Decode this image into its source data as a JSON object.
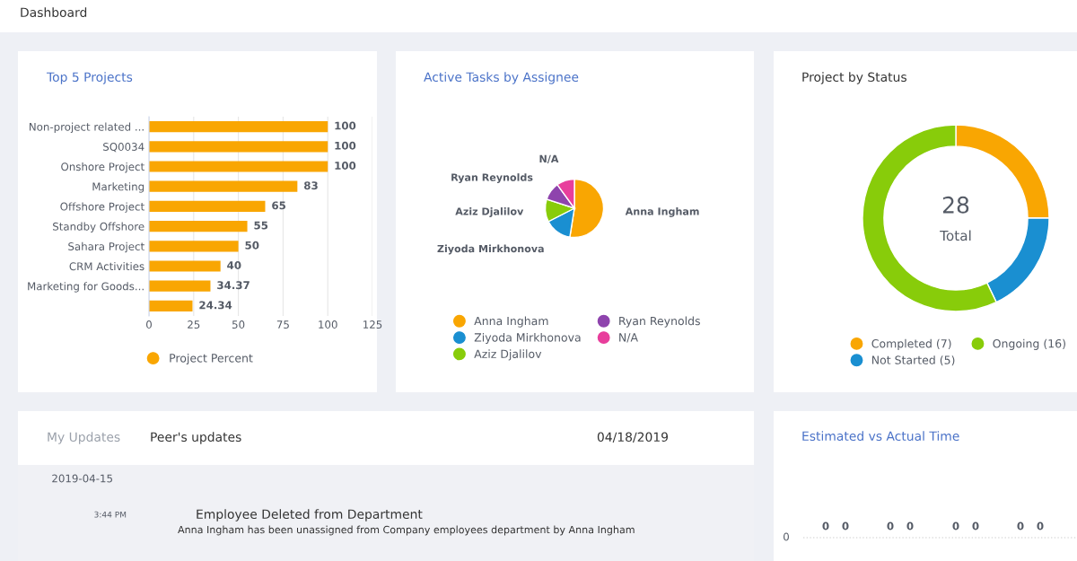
{
  "chart_data": [
    {
      "type": "other",
      "title": "Dashboard"
    },
    {
      "type": "bar",
      "title": "Top 5 Projects",
      "orientation": "horizontal",
      "categories": [
        "Non-project related ...",
        "SQ0034",
        "Onshore Project",
        "Marketing",
        "Offshore Project",
        "Standby Offshore",
        "Sahara Project",
        "CRM Activities",
        "Marketing for Goods...",
        null
      ],
      "series": [
        {
          "name": "Project Percent",
          "color": "#f9a602",
          "values": [
            100,
            100,
            100,
            83,
            65,
            55,
            50,
            40,
            34.37,
            24.34
          ]
        }
      ],
      "xlim": [
        0,
        125
      ],
      "xticks": [
        0,
        25,
        50,
        75,
        100,
        125
      ],
      "grid": "x",
      "data_labels": true,
      "legend": "bottom"
    },
    {
      "type": "pie",
      "title": "Active Tasks by Assignee",
      "categories": [
        "Anna Ingham",
        "Ziyoda Mirkhonova",
        "Aziz Djalilov",
        "Ryan Reynolds",
        "N/A"
      ],
      "values": [
        52.5,
        15,
        12.5,
        10,
        10
      ],
      "colors": [
        "#f9a602",
        "#1a8fd1",
        "#88cc0a",
        "#8e44ad",
        "#e83e9c"
      ],
      "legend": "bottom"
    },
    {
      "type": "donut",
      "title": "Project by Status",
      "categories": [
        "Completed (7)",
        "Not Started (5)",
        "Ongoing (16)"
      ],
      "values": [
        7,
        5,
        16
      ],
      "colors": [
        "#f9a602",
        "#1a8fd1",
        "#88cc0a"
      ],
      "legend": "bottom",
      "annotations": [
        "28",
        "Total"
      ]
    },
    {
      "type": "other",
      "annotations": [
        "My Updates",
        "Peer's updates",
        "04/18/2019",
        "2019-04-15",
        "3:44 PM",
        "Employee Deleted from Department",
        "Anna Ingham has been unassigned from Company employees department by Anna Ingham"
      ]
    },
    {
      "type": "other",
      "title": "Estimated vs Actual Time",
      "annotations": [
        "0",
        "0",
        "0",
        "0",
        "0",
        "0",
        "0",
        "0",
        "0"
      ]
    }
  ]
}
